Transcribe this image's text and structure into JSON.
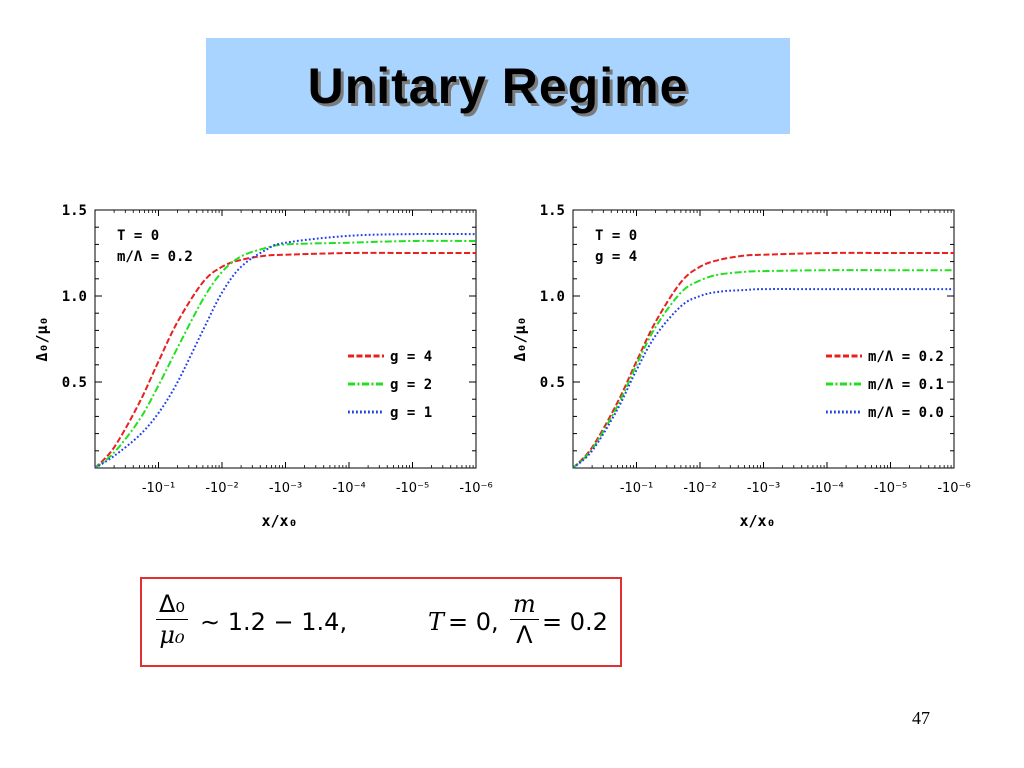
{
  "slide": {
    "title": "Unitary Regime",
    "page_number": "47"
  },
  "formula": {
    "lhs_num": "Δ₀",
    "lhs_den": "μ₀",
    "approx": "∼ 1.2 − 1.4,",
    "cond_T": "T",
    "cond_T_eq": "= 0,",
    "m_num": "m",
    "m_den": "Λ",
    "m_eq": "= 0.2"
  },
  "chart_data": [
    {
      "type": "line",
      "ylabel": "Δ₀/μ₀",
      "xlabel": "x/x₀",
      "ylim": [
        0,
        1.5
      ],
      "y_ticks": [
        0.5,
        1.0,
        1.5
      ],
      "y_tick_labels": [
        "0.5",
        "1.0",
        "1.5"
      ],
      "x_scale": "log(-x/x₀), decreasing to the right",
      "x_tick_labels": [
        "-10⁻¹",
        "-10⁻²",
        "-10⁻³",
        "-10⁻⁴",
        "-10⁻⁵",
        "-10⁻⁶"
      ],
      "annotation": [
        "T   = 0",
        "m/Λ = 0.2"
      ],
      "legend_position": "right-middle",
      "series": [
        {
          "name": "g   = 4",
          "color": "#e82020",
          "style": "dashed",
          "x": [
            -1,
            -0.5,
            -0.2,
            -0.1,
            -0.05,
            -0.02,
            -0.01,
            -0.005,
            -0.002,
            -0.001,
            -0.0001,
            -1e-05,
            -1e-06
          ],
          "y": [
            0.0,
            0.12,
            0.38,
            0.62,
            0.85,
            1.08,
            1.17,
            1.21,
            1.235,
            1.24,
            1.25,
            1.25,
            1.25
          ]
        },
        {
          "name": "g   = 2",
          "color": "#20e020",
          "style": "dash-dot",
          "x": [
            -1,
            -0.5,
            -0.2,
            -0.1,
            -0.05,
            -0.02,
            -0.01,
            -0.005,
            -0.002,
            -0.001,
            -0.0001,
            -1e-05,
            -1e-06
          ],
          "y": [
            0.0,
            0.09,
            0.28,
            0.48,
            0.7,
            0.98,
            1.14,
            1.23,
            1.28,
            1.3,
            1.31,
            1.32,
            1.32
          ]
        },
        {
          "name": "g   = 1",
          "color": "#2040e8",
          "style": "dotted",
          "x": [
            -1,
            -0.5,
            -0.2,
            -0.1,
            -0.05,
            -0.02,
            -0.01,
            -0.005,
            -0.002,
            -0.001,
            -0.0001,
            -1e-05,
            -1e-06
          ],
          "y": [
            0.0,
            0.07,
            0.19,
            0.32,
            0.5,
            0.8,
            1.02,
            1.17,
            1.27,
            1.31,
            1.35,
            1.36,
            1.36
          ]
        }
      ]
    },
    {
      "type": "line",
      "ylabel": "Δ₀/μ₀",
      "xlabel": "x/x₀",
      "ylim": [
        0,
        1.5
      ],
      "y_ticks": [
        0.5,
        1.0,
        1.5
      ],
      "y_tick_labels": [
        "0.5",
        "1.0",
        "1.5"
      ],
      "x_scale": "log(-x/x₀), decreasing to the right",
      "x_tick_labels": [
        "-10⁻¹",
        "-10⁻²",
        "-10⁻³",
        "-10⁻⁴",
        "-10⁻⁵",
        "-10⁻⁶"
      ],
      "annotation": [
        "T = 0",
        "g = 4"
      ],
      "legend_position": "right-middle",
      "series": [
        {
          "name": "m/Λ = 0.2",
          "color": "#e82020",
          "style": "dashed",
          "x": [
            -1,
            -0.5,
            -0.2,
            -0.1,
            -0.05,
            -0.02,
            -0.01,
            -0.005,
            -0.002,
            -0.001,
            -0.0001,
            -1e-05,
            -1e-06
          ],
          "y": [
            0.0,
            0.12,
            0.38,
            0.62,
            0.85,
            1.08,
            1.17,
            1.21,
            1.235,
            1.24,
            1.25,
            1.25,
            1.25
          ]
        },
        {
          "name": "m/Λ = 0.1",
          "color": "#20e020",
          "style": "dash-dot",
          "x": [
            -1,
            -0.5,
            -0.2,
            -0.1,
            -0.05,
            -0.02,
            -0.01,
            -0.005,
            -0.002,
            -0.001,
            -0.0001,
            -1e-05,
            -1e-06
          ],
          "y": [
            0.0,
            0.11,
            0.36,
            0.6,
            0.82,
            1.02,
            1.09,
            1.125,
            1.14,
            1.145,
            1.15,
            1.15,
            1.15
          ]
        },
        {
          "name": "m/Λ = 0.0",
          "color": "#2040e8",
          "style": "dotted",
          "x": [
            -1,
            -0.5,
            -0.2,
            -0.1,
            -0.05,
            -0.02,
            -0.01,
            -0.005,
            -0.002,
            -0.001,
            -0.0001,
            -1e-05,
            -1e-06
          ],
          "y": [
            0.0,
            0.1,
            0.34,
            0.57,
            0.77,
            0.94,
            1.0,
            1.025,
            1.035,
            1.04,
            1.04,
            1.04,
            1.04
          ]
        }
      ]
    }
  ]
}
